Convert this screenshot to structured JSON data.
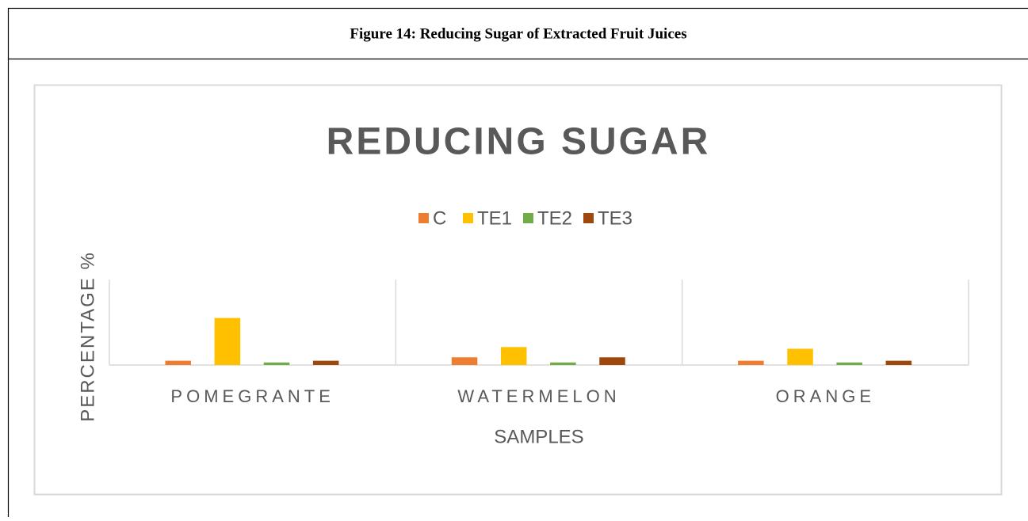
{
  "caption": "Figure 14: Reducing Sugar of Extracted Fruit Juices",
  "chart_data": {
    "type": "bar",
    "title": "REDUCING SUGAR",
    "x_label": "SAMPLES",
    "y_label": "PERCENTAGE %",
    "categories": [
      "POMEGRANTE",
      "WATERMELON",
      "ORANGE"
    ],
    "series": [
      {
        "name": "C",
        "color": "#ed7d31",
        "values": [
          0.5,
          0.9,
          0.5
        ]
      },
      {
        "name": "TE1",
        "color": "#ffc000",
        "values": [
          5.5,
          2.1,
          1.9
        ]
      },
      {
        "name": "TE2",
        "color": "#70ad47",
        "values": [
          0.3,
          0.3,
          0.3
        ]
      },
      {
        "name": "TE3",
        "color": "#9e480e",
        "values": [
          0.5,
          0.9,
          0.5
        ]
      }
    ],
    "ylim": [
      0,
      10
    ],
    "legend": "top"
  }
}
